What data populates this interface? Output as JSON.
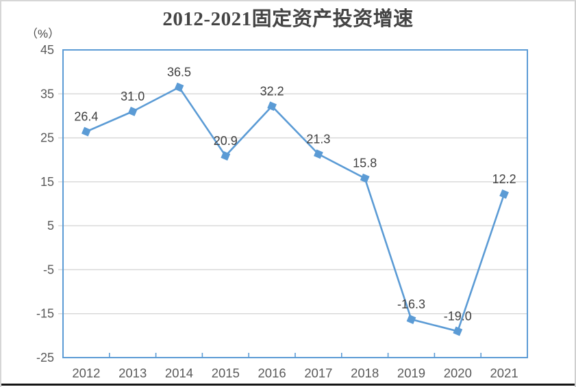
{
  "page": {
    "title": "2012-2021固定资产投资增速",
    "unit_label": "（%）"
  },
  "chart_data": {
    "type": "line",
    "title": "2012-2021固定资产投资增速",
    "ylabel_unit": "（%）",
    "categories": [
      "2012",
      "2013",
      "2014",
      "2015",
      "2016",
      "2017",
      "2018",
      "2019",
      "2020",
      "2021"
    ],
    "values": [
      26.4,
      31.0,
      36.5,
      20.9,
      32.2,
      21.3,
      15.8,
      -16.3,
      -19.0,
      12.2
    ],
    "data_labels": [
      "26.4",
      "31.0",
      "36.5",
      "20.9",
      "32.2",
      "21.3",
      "15.8",
      "-16.3",
      "-19.0",
      "12.2"
    ],
    "ylim": [
      -25,
      45
    ],
    "y_ticks": [
      45,
      35,
      25,
      15,
      5,
      -5,
      -15,
      -25
    ],
    "grid": true,
    "legend": "none",
    "marker": "rotated-square",
    "colors": {
      "line": "#5B9BD5",
      "marker": "#5B9BD5",
      "plot_border": "#5B9BD5",
      "gridline": "#D9D9D9",
      "data_label_text": "#3f3f3f",
      "axis_text": "#595959"
    }
  }
}
